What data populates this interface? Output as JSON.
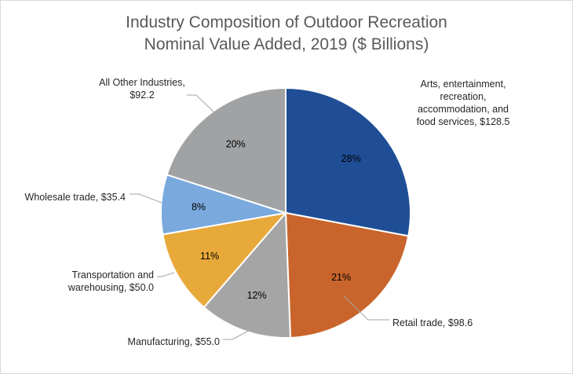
{
  "chart_data": {
    "type": "pie",
    "title": "Industry Composition of Outdoor Recreation",
    "subtitle": "Nominal Value Added, 2019 ($ Billions)",
    "start_angle_deg": 0,
    "direction": "clockwise",
    "legend": "none",
    "slices": [
      {
        "category": "Arts, entertainment, recreation, accommodation, and food services",
        "value": 128.5,
        "percent_label": "28%",
        "label_lines": [
          "Arts, entertainment,",
          "recreation,",
          "accommodation, and",
          "food services, $128.5"
        ],
        "color": "#1f4e96"
      },
      {
        "category": "Retail trade",
        "value": 98.6,
        "percent_label": "21%",
        "label_lines": [
          "Retail trade, $98.6"
        ],
        "color": "#c9652c"
      },
      {
        "category": "Manufacturing",
        "value": 55.0,
        "percent_label": "12%",
        "label_lines": [
          "Manufacturing, $55.0"
        ],
        "color": "#a5a5a5"
      },
      {
        "category": "Transportation and warehousing",
        "value": 50.0,
        "percent_label": "11%",
        "label_lines": [
          "Transportation and",
          "warehousing, $50.0"
        ],
        "color": "#e8a93b"
      },
      {
        "category": "Wholesale trade",
        "value": 35.4,
        "percent_label": "8%",
        "label_lines": [
          "Wholesale trade, $35.4"
        ],
        "color": "#79a9dd"
      },
      {
        "category": "All Other Industries",
        "value": 92.2,
        "percent_label": "20%",
        "label_lines": [
          "All Other Industries,",
          "$92.2"
        ],
        "color": "#a0a2a4"
      }
    ]
  }
}
